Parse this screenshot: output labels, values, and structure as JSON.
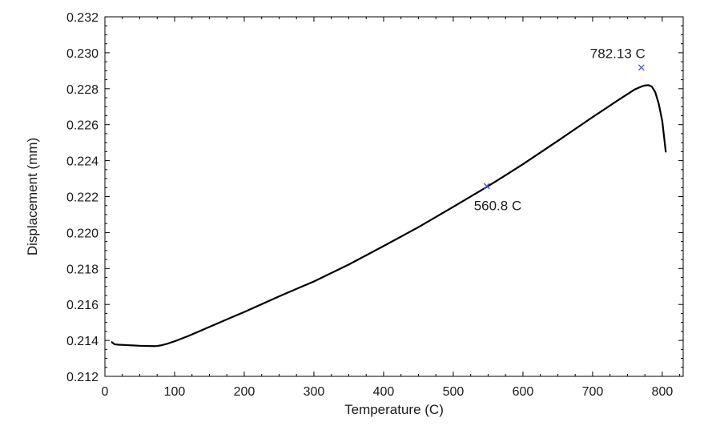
{
  "chart_data": {
    "type": "line",
    "title": "",
    "xlabel": "Temperature (C)",
    "ylabel": "Displacement (mm)",
    "xlim": [
      0,
      830
    ],
    "ylim": [
      0.212,
      0.232
    ],
    "xticks": [
      "0",
      "100",
      "200",
      "300",
      "400",
      "500",
      "600",
      "700",
      "800"
    ],
    "yticks": [
      "0.212",
      "0.214",
      "0.216",
      "0.218",
      "0.220",
      "0.222",
      "0.224",
      "0.226",
      "0.228",
      "0.230",
      "0.232"
    ],
    "grid": false,
    "legend": "none",
    "line_color": "#000000",
    "marker_color": "#4a5bc8",
    "series": [
      {
        "x": [
          10,
          14,
          20,
          30,
          40,
          50,
          60,
          70,
          75,
          80,
          90,
          100,
          120,
          150,
          180,
          200,
          250,
          300,
          350,
          400,
          450,
          500,
          540,
          560,
          600,
          650,
          700,
          740,
          760,
          770,
          775,
          780,
          785,
          790,
          795,
          800,
          805
        ],
        "y": [
          0.2139,
          0.21378,
          0.21376,
          0.21374,
          0.21372,
          0.2137,
          0.21369,
          0.21368,
          0.21369,
          0.21372,
          0.21382,
          0.21395,
          0.21425,
          0.21475,
          0.21525,
          0.21558,
          0.21645,
          0.21728,
          0.21822,
          0.21925,
          0.2203,
          0.22143,
          0.22235,
          0.22282,
          0.2238,
          0.2251,
          0.22642,
          0.22745,
          0.22795,
          0.22812,
          0.22818,
          0.2282,
          0.22812,
          0.2278,
          0.22715,
          0.2262,
          0.2245
        ]
      }
    ],
    "annotations": [
      {
        "label": "560.8 C",
        "x": 548,
        "y": 0.22258
      },
      {
        "label": "782.13 C",
        "x": 770,
        "y": 0.22918
      }
    ]
  }
}
